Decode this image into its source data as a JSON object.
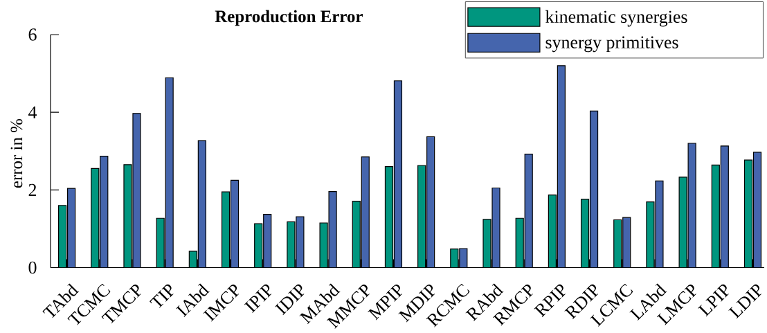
{
  "chart_data": {
    "type": "bar",
    "title": "Reproduction Error",
    "ylabel": "error in %",
    "categories": [
      "TAbd",
      "TCMC",
      "TMCP",
      "TIP",
      "IAbd",
      "IMCP",
      "IPIP",
      "IDIP",
      "MAbd",
      "MMCP",
      "MPIP",
      "MDIP",
      "RCMC",
      "RAbd",
      "RMCP",
      "RPIP",
      "RDIP",
      "LCMC",
      "LAbd",
      "LMCP",
      "LPIP",
      "LDIP"
    ],
    "series": [
      {
        "name": "kinematic synergies",
        "color": "#00967f",
        "values": [
          1.6,
          2.55,
          2.65,
          1.27,
          0.42,
          1.95,
          1.13,
          1.18,
          1.15,
          1.71,
          2.6,
          2.63,
          0.48,
          1.24,
          1.27,
          1.87,
          1.76,
          1.23,
          1.69,
          2.33,
          2.64,
          2.77
        ]
      },
      {
        "name": "synergy primitives",
        "color": "#4565ad",
        "values": [
          2.04,
          2.87,
          3.97,
          4.89,
          3.27,
          2.25,
          1.37,
          1.31,
          1.96,
          2.85,
          4.81,
          3.37,
          0.49,
          2.05,
          2.92,
          5.2,
          4.03,
          1.29,
          2.23,
          3.2,
          3.13,
          2.97
        ]
      }
    ],
    "ylim": [
      0,
      6
    ],
    "yticks": [
      0,
      2,
      4,
      6
    ],
    "legend": "top right"
  }
}
